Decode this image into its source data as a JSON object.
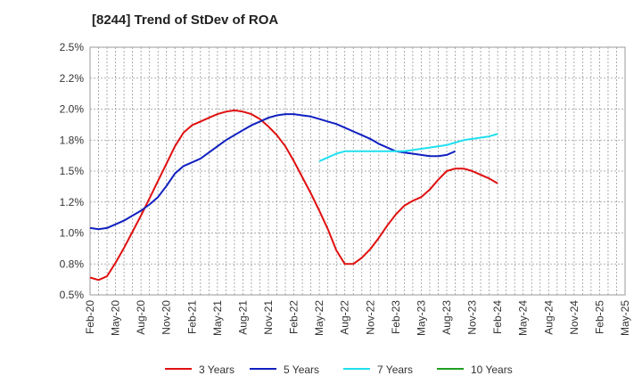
{
  "chart_data": {
    "type": "line",
    "title": "[8244]  Trend of StDev of ROA",
    "xlabel": "",
    "ylabel": "",
    "ylim": [
      0.5,
      2.5
    ],
    "y_ticks": [
      "0.5%",
      "0.8%",
      "1.0%",
      "1.2%",
      "1.5%",
      "1.8%",
      "2.0%",
      "2.2%",
      "2.5%"
    ],
    "x_ticks": [
      "Feb-20",
      "May-20",
      "Aug-20",
      "Nov-20",
      "Feb-21",
      "May-21",
      "Aug-21",
      "Nov-21",
      "Feb-22",
      "May-22",
      "Aug-22",
      "Nov-22",
      "Feb-23",
      "May-23",
      "Aug-23",
      "Nov-23",
      "Feb-24",
      "May-24",
      "Aug-24",
      "Nov-24",
      "Feb-25",
      "May-25"
    ],
    "grid": true,
    "legend_position": "bottom",
    "series": [
      {
        "name": "3 Years",
        "color": "#e01010",
        "values": [
          0.64,
          0.62,
          0.65,
          0.76,
          0.88,
          1.01,
          1.14,
          1.28,
          1.42,
          1.56,
          1.7,
          1.81,
          1.87,
          1.9,
          1.93,
          1.96,
          1.98,
          1.99,
          1.98,
          1.96,
          1.92,
          1.86,
          1.79,
          1.7,
          1.58,
          1.45,
          1.32,
          1.18,
          1.03,
          0.86,
          0.75,
          0.75,
          0.8,
          0.87,
          0.96,
          1.06,
          1.15,
          1.22,
          1.26,
          1.29,
          1.35,
          1.43,
          1.5,
          1.52,
          1.52,
          1.5,
          1.47,
          1.44,
          1.4
        ]
      },
      {
        "name": "5 Years",
        "color": "#1020c0",
        "values": [
          1.04,
          1.03,
          1.04,
          1.07,
          1.1,
          1.14,
          1.18,
          1.23,
          1.29,
          1.38,
          1.48,
          1.54,
          1.57,
          1.6,
          1.65,
          1.7,
          1.75,
          1.79,
          1.83,
          1.87,
          1.9,
          1.93,
          1.95,
          1.96,
          1.96,
          1.95,
          1.94,
          1.92,
          1.9,
          1.88,
          1.85,
          1.82,
          1.79,
          1.76,
          1.72,
          1.69,
          1.66,
          1.65,
          1.64,
          1.63,
          1.62,
          1.62,
          1.63,
          1.66
        ]
      },
      {
        "name": "7 Years",
        "color": "#20e0f0",
        "values": [
          1.58,
          1.61,
          1.64,
          1.66,
          1.66,
          1.66,
          1.66,
          1.66,
          1.66,
          1.66,
          1.66,
          1.67,
          1.68,
          1.69,
          1.7,
          1.71,
          1.73,
          1.75,
          1.76,
          1.77,
          1.78,
          1.8
        ]
      },
      {
        "name": "10 Years",
        "color": "#20a020",
        "values": []
      }
    ]
  }
}
